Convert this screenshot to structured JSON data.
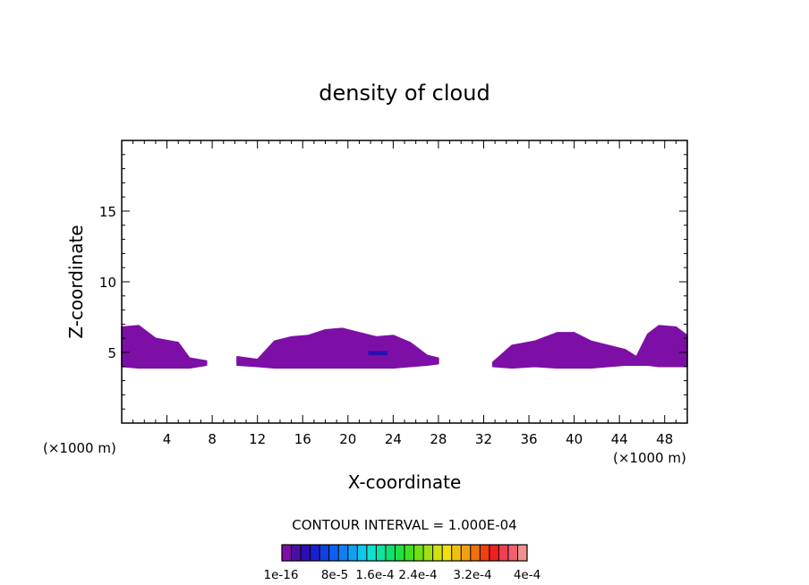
{
  "chart_data": {
    "type": "heatmap",
    "title": "density of cloud",
    "xlabel": "X-coordinate",
    "ylabel": "Z-coordinate",
    "x_unit": "(×1000 m)",
    "z_unit": "(×1000 m)",
    "xlim": [
      0,
      50
    ],
    "ylim": [
      0,
      20
    ],
    "x_ticks": [
      4,
      8,
      12,
      16,
      20,
      24,
      28,
      32,
      36,
      40,
      44,
      48
    ],
    "y_ticks": [
      5,
      10,
      15
    ],
    "x_tick_labels": [
      "4",
      "8",
      "12",
      "16",
      "20",
      "24",
      "28",
      "32",
      "36",
      "40",
      "44",
      "48"
    ],
    "y_tick_labels": [
      "5",
      "10",
      "15"
    ],
    "contour_interval_text": "CONTOUR INTERVAL = 1.000E-04",
    "colorbar_labels": [
      "1e-16",
      "8e-5",
      "1.6e-4",
      "2.4e-4",
      "3.2e-4",
      "4e-4"
    ],
    "colorbar_colors": [
      "#7d0fa6",
      "#4b0fa0",
      "#2a10b3",
      "#1a20d0",
      "#1040e0",
      "#1060f0",
      "#1080f0",
      "#10a0f0",
      "#10c8e8",
      "#10e0d0",
      "#10e0a0",
      "#10e070",
      "#20e040",
      "#40e020",
      "#70e010",
      "#a0e010",
      "#d0e010",
      "#f0e010",
      "#f0c010",
      "#f0a010",
      "#f07010",
      "#f04010",
      "#f02020",
      "#f04050",
      "#f06070",
      "#f09090"
    ],
    "cloud_color": "#7d0fa6",
    "core_color": "#2a10b3",
    "series": [
      {
        "values": [
          [
            0.0,
            4.0,
            6.8
          ],
          [
            1.5,
            3.9,
            6.9
          ],
          [
            3.0,
            3.9,
            6.0
          ],
          [
            5.0,
            3.9,
            5.7
          ],
          [
            6.0,
            3.9,
            4.6
          ],
          [
            7.5,
            4.1,
            4.4
          ]
        ]
      },
      {
        "values": [
          [
            10.2,
            4.1,
            4.7
          ],
          [
            12.0,
            4.0,
            4.5
          ],
          [
            13.5,
            3.9,
            5.8
          ],
          [
            15.0,
            3.9,
            6.1
          ],
          [
            16.5,
            3.9,
            6.2
          ],
          [
            18.0,
            3.9,
            6.6
          ],
          [
            19.5,
            3.9,
            6.7
          ],
          [
            21.0,
            3.9,
            6.4
          ],
          [
            22.5,
            3.9,
            6.1
          ],
          [
            24.0,
            3.9,
            6.2
          ],
          [
            25.5,
            4.0,
            5.7
          ],
          [
            27.0,
            4.1,
            4.8
          ],
          [
            28.0,
            4.2,
            4.6
          ]
        ]
      },
      {
        "values": [
          [
            32.8,
            4.0,
            4.3
          ],
          [
            34.5,
            3.9,
            5.5
          ],
          [
            36.5,
            4.0,
            5.8
          ],
          [
            38.5,
            3.9,
            6.4
          ],
          [
            40.0,
            3.9,
            6.4
          ],
          [
            41.5,
            3.9,
            5.8
          ],
          [
            43.0,
            4.0,
            5.5
          ],
          [
            44.5,
            4.1,
            5.2
          ],
          [
            45.5,
            4.1,
            4.7
          ],
          [
            46.5,
            4.1,
            6.3
          ],
          [
            47.5,
            4.0,
            6.9
          ],
          [
            49.0,
            4.0,
            6.8
          ],
          [
            50.0,
            4.0,
            6.2
          ]
        ]
      }
    ],
    "core": {
      "x": [
        21.8,
        23.5
      ],
      "z": [
        4.8,
        5.1
      ]
    },
    "grid": false
  }
}
